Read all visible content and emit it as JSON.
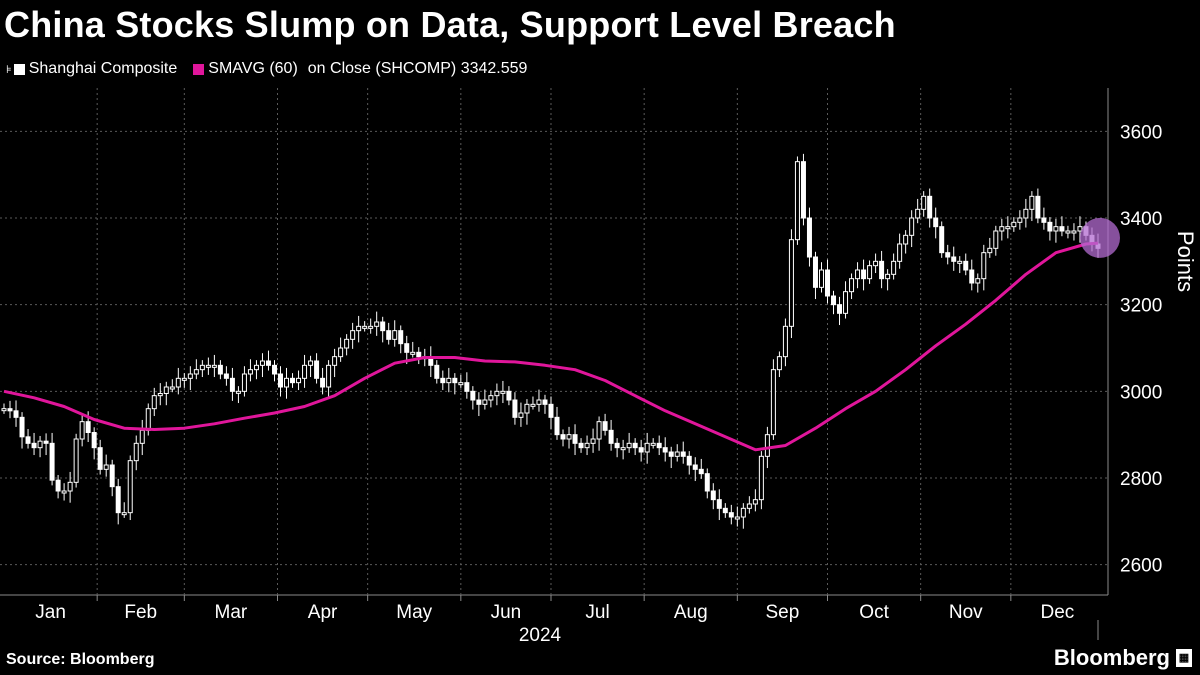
{
  "title": "China Stocks Slump on Data, Support Level Breach",
  "legend": {
    "series1": "Shanghai Composite",
    "series2": "SMAVG (60)",
    "series2_suffix": "on Close (SHCOMP) 3342.559"
  },
  "source": "Source:  Bloomberg",
  "brand": "Bloomberg",
  "colors": {
    "candles": "#ffffff",
    "ma": "#e0169b",
    "grid": "#5a5a5a",
    "highlight": "#b36bd0"
  },
  "chart_data": {
    "type": "line",
    "title": "China Stocks Slump on Data, Support Level Breach",
    "ylabel": "Points",
    "xlabel": "2024",
    "ylim": [
      2530,
      3700
    ],
    "y_ticks": [
      2600,
      2800,
      3000,
      3200,
      3400,
      3600
    ],
    "x_ticks": [
      "Jan",
      "Feb",
      "Mar",
      "Apr",
      "May",
      "Jun",
      "Jul",
      "Aug",
      "Sep",
      "Oct",
      "Nov",
      "Dec"
    ],
    "year_label": "2024",
    "grid": true,
    "legend_position": "top-left",
    "series": [
      {
        "name": "Shanghai Composite",
        "style": "candlestick",
        "x": [
          0,
          2,
          4,
          6,
          8,
          10,
          12,
          14,
          16,
          18,
          20,
          22,
          24,
          26,
          28,
          30,
          32,
          34,
          36,
          38,
          40,
          42,
          44,
          46,
          48,
          50,
          52,
          54,
          56,
          58,
          60,
          62,
          64,
          66,
          68,
          70,
          72,
          74,
          76,
          78,
          80,
          82,
          84,
          86,
          88,
          90,
          92,
          94,
          96,
          98,
          100,
          102,
          104,
          106,
          108,
          110,
          112,
          114,
          116,
          118,
          120,
          122,
          124,
          126,
          128,
          130,
          132,
          134,
          136,
          138,
          140,
          142,
          144,
          146,
          148,
          150,
          152,
          154,
          156,
          158,
          160,
          162,
          164,
          166,
          168,
          170,
          172,
          174,
          176,
          178,
          180,
          182,
          184,
          186,
          188,
          190,
          192,
          194,
          196,
          198,
          200,
          202,
          204,
          206,
          208,
          210,
          212,
          214,
          216,
          218,
          220,
          222,
          224,
          226,
          228,
          230,
          232,
          234,
          236,
          238,
          240,
          242,
          244,
          246,
          248,
          250,
          252,
          254,
          256,
          258,
          260,
          262,
          264,
          266,
          268,
          270,
          272,
          274,
          276,
          278,
          280,
          282,
          284,
          286,
          288,
          290,
          292,
          294,
          296,
          298,
          300,
          302,
          304,
          306,
          308,
          310,
          312,
          314,
          316,
          318,
          320,
          322,
          324,
          326,
          328,
          330,
          332,
          334,
          336,
          338,
          340,
          342,
          344,
          346,
          348,
          350,
          352,
          354,
          356,
          358,
          360,
          362,
          364
        ],
        "values": [
          2960,
          2955,
          2940,
          2895,
          2880,
          2870,
          2885,
          2880,
          2795,
          2770,
          2770,
          2790,
          2890,
          2930,
          2905,
          2870,
          2820,
          2830,
          2780,
          2720,
          2720,
          2840,
          2880,
          2910,
          2960,
          2990,
          2995,
          3010,
          3010,
          3030,
          3030,
          3040,
          3050,
          3060,
          3060,
          3060,
          3040,
          3030,
          3000,
          3000,
          3040,
          3050,
          3060,
          3070,
          3060,
          3040,
          3010,
          3030,
          3020,
          3030,
          3060,
          3070,
          3030,
          3010,
          3060,
          3080,
          3100,
          3120,
          3140,
          3150,
          3150,
          3150,
          3160,
          3140,
          3120,
          3140,
          3110,
          3090,
          3090,
          3080,
          3080,
          3060,
          3030,
          3020,
          3030,
          3020,
          3020,
          3000,
          2980,
          2970,
          2980,
          2990,
          3000,
          3000,
          2980,
          2940,
          2950,
          2970,
          2970,
          2980,
          2970,
          2940,
          2900,
          2890,
          2900,
          2880,
          2870,
          2880,
          2890,
          2930,
          2910,
          2880,
          2870,
          2870,
          2880,
          2870,
          2860,
          2880,
          2880,
          2870,
          2860,
          2850,
          2860,
          2850,
          2830,
          2820,
          2810,
          2770,
          2750,
          2730,
          2720,
          2710,
          2710,
          2730,
          2740,
          2750,
          2850,
          2900,
          3050,
          3080,
          3150,
          3350,
          3530,
          3400,
          3310,
          3240,
          3280,
          3220,
          3200,
          3180,
          3230,
          3260,
          3280,
          3260,
          3290,
          3300,
          3260,
          3270,
          3300,
          3340,
          3360,
          3400,
          3420,
          3450,
          3400,
          3380,
          3320,
          3310,
          3300,
          3300,
          3280,
          3250,
          3260,
          3320,
          3330,
          3370,
          3380,
          3380,
          3390,
          3400,
          3420,
          3450,
          3400,
          3390,
          3370,
          3380,
          3370,
          3370,
          3370,
          3380,
          3360,
          3340,
          3330
        ]
      },
      {
        "name": "SMAVG (60)",
        "style": "line",
        "x": [
          0,
          10,
          20,
          30,
          40,
          50,
          60,
          70,
          80,
          90,
          100,
          110,
          120,
          130,
          140,
          150,
          160,
          170,
          180,
          190,
          200,
          210,
          220,
          230,
          240,
          250,
          260,
          270,
          280,
          290,
          300,
          310,
          320,
          330,
          340,
          350,
          360,
          364
        ],
        "values": [
          3000,
          2985,
          2965,
          2935,
          2915,
          2912,
          2915,
          2925,
          2938,
          2950,
          2965,
          2990,
          3030,
          3065,
          3078,
          3078,
          3070,
          3068,
          3060,
          3050,
          3025,
          2990,
          2955,
          2925,
          2895,
          2865,
          2875,
          2915,
          2960,
          3000,
          3050,
          3105,
          3155,
          3210,
          3270,
          3320,
          3340,
          3342
        ]
      }
    ],
    "annotations": [
      {
        "type": "circle-highlight",
        "x": 364,
        "value": 3342.559
      }
    ]
  }
}
